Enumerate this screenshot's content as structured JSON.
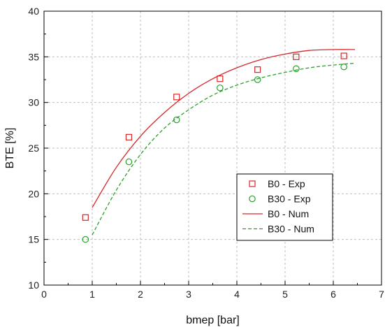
{
  "chart_data": {
    "type": "scatter",
    "xlabel": "bmep [bar]",
    "ylabel": "BTE [%]",
    "xlim": [
      0,
      7
    ],
    "ylim": [
      10,
      40
    ],
    "x_ticks": [
      "0",
      "1",
      "2",
      "3",
      "4",
      "5",
      "6",
      "7"
    ],
    "y_ticks": [
      "10",
      "15",
      "20",
      "25",
      "30",
      "35",
      "40"
    ],
    "grid": true,
    "legend_position": "lower-right",
    "series": [
      {
        "name": "B0 - Exp",
        "kind": "scatter",
        "marker": "square",
        "color": "#d62728",
        "x": [
          0.86,
          1.76,
          2.75,
          3.65,
          4.43,
          5.23,
          6.22
        ],
        "y": [
          17.4,
          26.2,
          30.6,
          32.6,
          33.6,
          35.0,
          35.1
        ]
      },
      {
        "name": "B30 - Exp",
        "kind": "scatter",
        "marker": "circle",
        "color": "#2ca02c",
        "x": [
          0.86,
          1.76,
          2.75,
          3.65,
          4.43,
          5.23,
          6.22
        ],
        "y": [
          15.0,
          23.5,
          28.1,
          31.6,
          32.5,
          33.7,
          33.9
        ]
      },
      {
        "name": "B0 - Num",
        "kind": "line",
        "dash": "solid",
        "color": "#d62728",
        "x": [
          1.0,
          1.5,
          2.0,
          2.5,
          3.0,
          3.5,
          4.0,
          4.5,
          5.0,
          5.5,
          6.0,
          6.45
        ],
        "y": [
          18.5,
          22.9,
          26.3,
          28.9,
          31.0,
          32.6,
          33.8,
          34.7,
          35.3,
          35.7,
          35.8,
          35.8
        ]
      },
      {
        "name": "B30 - Num",
        "kind": "line",
        "dash": "dashed",
        "color": "#2ca02c",
        "x": [
          1.0,
          1.5,
          2.0,
          2.5,
          3.0,
          3.5,
          4.0,
          4.5,
          5.0,
          5.5,
          6.0,
          6.45
        ],
        "y": [
          15.5,
          20.4,
          24.3,
          27.2,
          29.2,
          30.8,
          31.9,
          32.7,
          33.3,
          33.8,
          34.1,
          34.3
        ]
      }
    ]
  }
}
